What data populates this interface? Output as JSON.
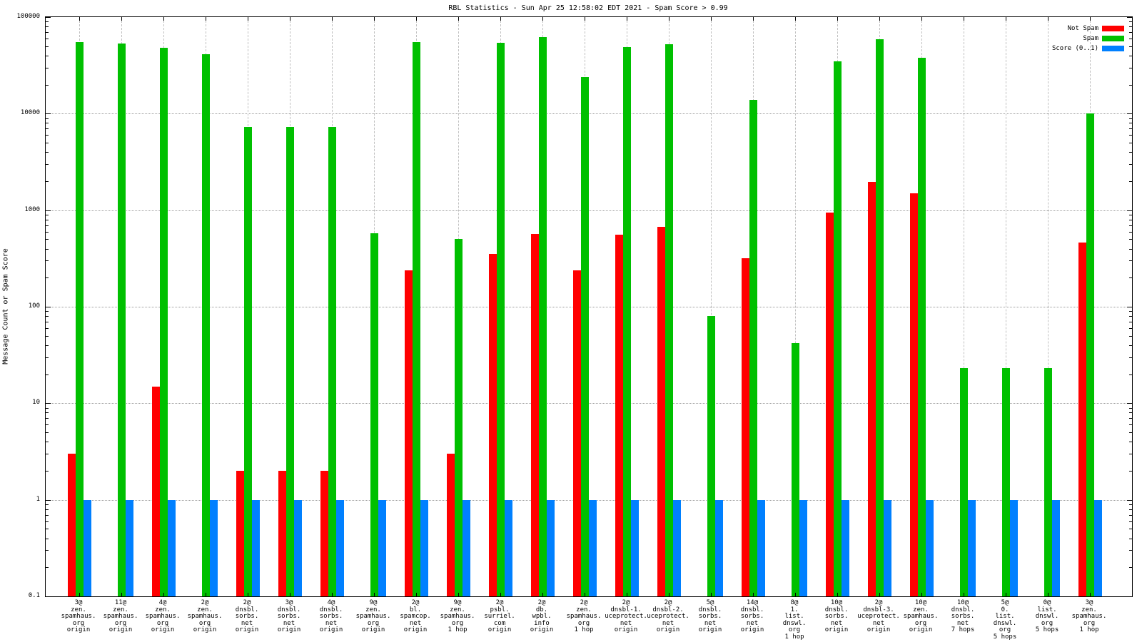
{
  "title": "RBL Statistics - Sun Apr 25 12:58:02 EDT 2021 - Spam Score > 0.99",
  "y_axis": {
    "label": "Message Count or Spam Score",
    "ticks": [
      "100000",
      "10000",
      "1000",
      "100",
      "10",
      "1",
      "0.1"
    ],
    "min": 0.1,
    "max": 100000
  },
  "legend": [
    {
      "label": "Not Spam",
      "color": "#ff0000"
    },
    {
      "label": "Spam",
      "color": "#00c000"
    },
    {
      "label": "Score (0..1)",
      "color": "#0080ff"
    }
  ],
  "chart_data": {
    "type": "bar",
    "scale": "log",
    "title": "RBL Statistics - Sun Apr 25 12:58:02 EDT 2021 - Spam Score > 0.99",
    "ylabel": "Message Count or Spam Score",
    "ylim": [
      0.1,
      100000
    ],
    "grid": true,
    "legend_position": "top-right",
    "categories": [
      [
        "3@",
        "zen.",
        "spamhaus.",
        "org",
        "origin"
      ],
      [
        "11@",
        "zen.",
        "spamhaus.",
        "org",
        "origin"
      ],
      [
        "4@",
        "zen.",
        "spamhaus.",
        "org",
        "origin"
      ],
      [
        "2@",
        "zen.",
        "spamhaus.",
        "org",
        "origin"
      ],
      [
        "2@",
        "dnsbl.",
        "sorbs.",
        "net",
        "origin"
      ],
      [
        "3@",
        "dnsbl.",
        "sorbs.",
        "net",
        "origin"
      ],
      [
        "4@",
        "dnsbl.",
        "sorbs.",
        "net",
        "origin"
      ],
      [
        "9@",
        "zen.",
        "spamhaus.",
        "org",
        "origin"
      ],
      [
        "2@",
        "bl.",
        "spamcop.",
        "net",
        "origin"
      ],
      [
        "9@",
        "zen.",
        "spamhaus.",
        "org",
        "1 hop"
      ],
      [
        "2@",
        "psbl.",
        "surriel.",
        "com",
        "origin"
      ],
      [
        "2@",
        "db.",
        "wpbl.",
        "info",
        "origin"
      ],
      [
        "2@",
        "zen.",
        "spamhaus.",
        "org",
        "1 hop"
      ],
      [
        "2@",
        "dnsbl-1.",
        "uceprotect.",
        "net",
        "origin"
      ],
      [
        "2@",
        "dnsbl-2.",
        "uceprotect.",
        "net",
        "origin"
      ],
      [
        "5@",
        "dnsbl.",
        "sorbs.",
        "net",
        "origin"
      ],
      [
        "14@",
        "dnsbl.",
        "sorbs.",
        "net",
        "origin"
      ],
      [
        "8@",
        "1.",
        "list.",
        "dnswl.",
        "org",
        "1 hop"
      ],
      [
        "10@",
        "dnsbl.",
        "sorbs.",
        "net",
        "origin"
      ],
      [
        "2@",
        "dnsbl-3.",
        "uceprotect.",
        "net",
        "origin"
      ],
      [
        "10@",
        "zen.",
        "spamhaus.",
        "org",
        "origin"
      ],
      [
        "10@",
        "dnsbl.",
        "sorbs.",
        "net",
        "7 hops"
      ],
      [
        "5@",
        "0.",
        "list.",
        "dnswl.",
        "org",
        "5 hops"
      ],
      [
        "0@",
        "list.",
        "dnswl.",
        "org",
        "5 hops"
      ],
      [
        "3@",
        "zen.",
        "spamhaus.",
        "org",
        "1 hop"
      ]
    ],
    "series": [
      {
        "name": "Not Spam",
        "color": "#ff0000",
        "values": [
          3,
          null,
          15,
          null,
          2,
          2,
          2,
          null,
          240,
          3,
          350,
          570,
          240,
          560,
          670,
          null,
          320,
          null,
          950,
          1950,
          1500,
          null,
          null,
          null,
          460
        ]
      },
      {
        "name": "Spam",
        "color": "#00c000",
        "values": [
          55000,
          53000,
          48000,
          41000,
          7300,
          7300,
          7300,
          580,
          55000,
          500,
          54000,
          62000,
          24000,
          49000,
          52000,
          80,
          14000,
          42,
          35000,
          59000,
          38000,
          23,
          23,
          23,
          10000
        ]
      },
      {
        "name": "Score (0..1)",
        "color": "#0080ff",
        "values": [
          1,
          1,
          1,
          1,
          1,
          1,
          1,
          1,
          1,
          1,
          1,
          1,
          1,
          1,
          1,
          1,
          1,
          1,
          1,
          1,
          1,
          1,
          1,
          1,
          1
        ]
      }
    ]
  }
}
